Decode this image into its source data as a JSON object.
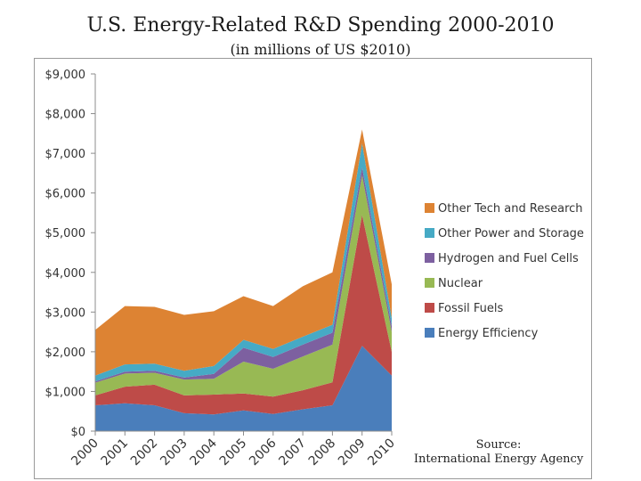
{
  "title": "U.S. Energy-Related R&D Spending 2000-2010",
  "subtitle": "(in millions of US $2010)",
  "source": {
    "line1": "Source:",
    "line2": "International Energy Agency"
  },
  "chart_data": {
    "type": "area",
    "stacked": true,
    "x": [
      "2000",
      "2001",
      "2002",
      "2003",
      "2004",
      "2005",
      "2006",
      "2007",
      "2008",
      "2009",
      "2010"
    ],
    "ylim": [
      0,
      9000
    ],
    "yticks": [
      0,
      1000,
      2000,
      3000,
      4000,
      5000,
      6000,
      7000,
      8000,
      9000
    ],
    "ytick_labels": [
      "$0",
      "$1,000",
      "$2,000",
      "$3,000",
      "$4,000",
      "$5,000",
      "$6,000",
      "$7,000",
      "$8,000",
      "$9,000"
    ],
    "xlabel": "",
    "ylabel": "",
    "legend_position": "right",
    "grid": false,
    "series": [
      {
        "name": "Energy Efficiency",
        "color": "#4a7ebb",
        "values": [
          650,
          700,
          650,
          450,
          420,
          520,
          430,
          550,
          650,
          2150,
          1400
        ]
      },
      {
        "name": "Fossil Fuels",
        "color": "#be4b48",
        "values": [
          250,
          420,
          520,
          450,
          500,
          430,
          440,
          480,
          580,
          3300,
          600
        ]
      },
      {
        "name": "Nuclear",
        "color": "#98b954",
        "values": [
          320,
          330,
          300,
          400,
          400,
          800,
          700,
          850,
          950,
          1000,
          500
        ]
      },
      {
        "name": "Hydrogen and Fuel Cells",
        "color": "#7d60a0",
        "values": [
          30,
          50,
          50,
          50,
          120,
          350,
          300,
          300,
          300,
          200,
          150
        ]
      },
      {
        "name": "Other Power and Storage",
        "color": "#46aac5",
        "values": [
          150,
          180,
          180,
          170,
          200,
          200,
          200,
          200,
          200,
          600,
          200
        ]
      },
      {
        "name": "Other Tech and Research",
        "color": "#dd8333",
        "values": [
          1150,
          1470,
          1430,
          1410,
          1380,
          1100,
          1080,
          1270,
          1320,
          350,
          850
        ]
      }
    ]
  }
}
